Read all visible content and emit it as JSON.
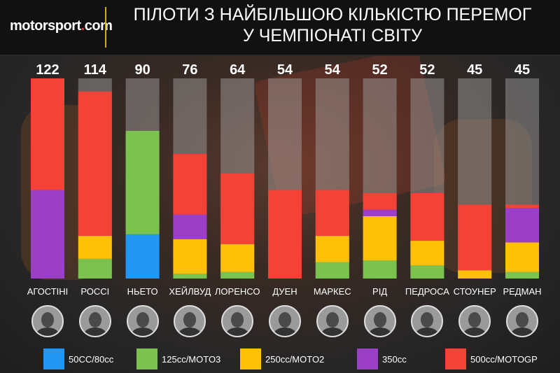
{
  "header": {
    "logo_main": "motorsport",
    "logo_dot": ".",
    "logo_suffix": "com",
    "title_line1": "ПІЛОТИ З НАЙБІЛЬШОЮ КІЛЬКІСТЮ ПЕРЕМОГ",
    "title_line2": "У ЧЕМПІОНАТІ СВІТУ"
  },
  "colors": {
    "50cc": "#2196f3",
    "125cc": "#7cc24e",
    "250cc": "#ffc107",
    "350cc": "#9c3fc7",
    "500cc": "#f44336",
    "track": "#a8a8a8"
  },
  "chart_data": {
    "type": "bar",
    "stacked": true,
    "categories": [
      "АГОСТІНІ",
      "РОССІ",
      "НЬЕТО",
      "ХЕЙЛВУД",
      "ЛОРЕНСО",
      "ДУЕН",
      "МАРКЕС",
      "РІД",
      "ПЕДРОСА",
      "СТОУНЕР",
      "РЕДМАН"
    ],
    "totals": [
      122,
      114,
      90,
      76,
      64,
      54,
      54,
      52,
      52,
      45,
      45
    ],
    "series": [
      {
        "name": "50CC/80cc",
        "key": "50cc",
        "values": [
          0,
          0,
          27,
          0,
          0,
          0,
          0,
          0,
          0,
          0,
          0
        ]
      },
      {
        "name": "125cc/MOTO3",
        "key": "125cc",
        "values": [
          0,
          12,
          63,
          3,
          4,
          0,
          10,
          11,
          8,
          0,
          4
        ]
      },
      {
        "name": "250cc/MOTO2",
        "key": "250cc",
        "values": [
          0,
          14,
          0,
          21,
          17,
          0,
          16,
          27,
          15,
          5,
          18
        ]
      },
      {
        "name": "350cc",
        "key": "350cc",
        "values": [
          54,
          0,
          0,
          15,
          0,
          0,
          0,
          4,
          0,
          0,
          21
        ]
      },
      {
        "name": "500cc/MOTOGP",
        "key": "500cc",
        "values": [
          68,
          88,
          0,
          37,
          43,
          54,
          28,
          10,
          29,
          40,
          2
        ]
      }
    ],
    "ylim": [
      0,
      122
    ]
  },
  "legend": [
    {
      "label": "50CC/80cc",
      "key": "50cc"
    },
    {
      "label": "125cc/MOTO3",
      "key": "125cc"
    },
    {
      "label": "250cc/MOTO2",
      "key": "250cc"
    },
    {
      "label": "350cc",
      "key": "350cc"
    },
    {
      "label": "500cc/MOTOGP",
      "key": "500cc"
    }
  ],
  "avatars": [
    "rider-photo",
    "rider-photo",
    "rider-photo",
    "rider-photo",
    "rider-photo",
    "rider-photo",
    "rider-photo",
    "rider-photo",
    "rider-photo",
    "rider-photo",
    "rider-photo"
  ]
}
